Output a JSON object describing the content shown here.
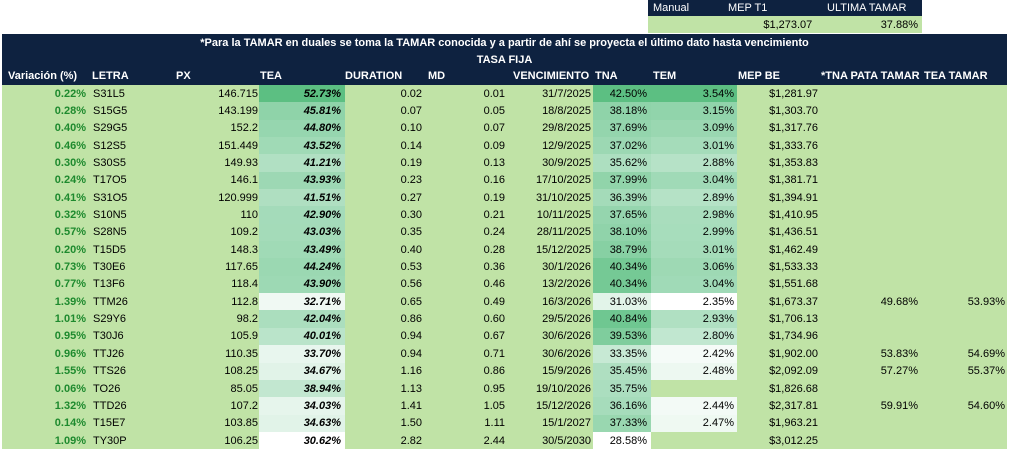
{
  "header": {
    "labels": [
      "Manual",
      "MEP T1",
      "ULTIMA TAMAR"
    ],
    "mep_t1": "$1,273.07",
    "ultima_tamar": "37.88%"
  },
  "note": "*Para la TAMAR en duales se toma la TAMAR conocida y a partir de ahí se proyecta el último dato hasta vencimiento",
  "section_title": "TASA FIJA",
  "columns": [
    "Variación (%)",
    "LETRA",
    "PX",
    "TEA",
    "DURATION",
    "MD",
    "VENCIMIENTO",
    "TNA",
    "TEM",
    "MEP BE",
    "*TNA PATA TAMAR",
    "TEA TAMAR"
  ],
  "colors": {
    "navy": "#0e2240",
    "row_bg": "#c0e3a6",
    "var_text": "#1e8a2e",
    "heat_max": "#5cbf82",
    "heat_min": "#ffffff"
  },
  "rows": [
    {
      "var": "0.22%",
      "letra": "S31L5",
      "px": "146.715",
      "tea": "52.73%",
      "duration": "0.02",
      "md": "0.01",
      "venc": "31/7/2025",
      "tna": "42.50%",
      "tem": "3.54%",
      "mep": "$1,281.97",
      "tna_tamar": "",
      "tea_tamar": "",
      "tea_n": 52.73,
      "tna_n": 42.5,
      "tem_n": 3.54
    },
    {
      "var": "0.28%",
      "letra": "S15G5",
      "px": "143.199",
      "tea": "45.81%",
      "duration": "0.07",
      "md": "0.05",
      "venc": "18/8/2025",
      "tna": "38.18%",
      "tem": "3.15%",
      "mep": "$1,303.70",
      "tna_tamar": "",
      "tea_tamar": "",
      "tea_n": 45.81,
      "tna_n": 38.18,
      "tem_n": 3.15
    },
    {
      "var": "0.40%",
      "letra": "S29G5",
      "px": "152.2",
      "tea": "44.80%",
      "duration": "0.10",
      "md": "0.07",
      "venc": "29/8/2025",
      "tna": "37.69%",
      "tem": "3.09%",
      "mep": "$1,317.76",
      "tna_tamar": "",
      "tea_tamar": "",
      "tea_n": 44.8,
      "tna_n": 37.69,
      "tem_n": 3.09
    },
    {
      "var": "0.46%",
      "letra": "S12S5",
      "px": "151.449",
      "tea": "43.52%",
      "duration": "0.14",
      "md": "0.09",
      "venc": "12/9/2025",
      "tna": "37.02%",
      "tem": "3.01%",
      "mep": "$1,333.76",
      "tna_tamar": "",
      "tea_tamar": "",
      "tea_n": 43.52,
      "tna_n": 37.02,
      "tem_n": 3.01
    },
    {
      "var": "0.30%",
      "letra": "S30S5",
      "px": "149.93",
      "tea": "41.21%",
      "duration": "0.19",
      "md": "0.13",
      "venc": "30/9/2025",
      "tna": "35.62%",
      "tem": "2.88%",
      "mep": "$1,353.83",
      "tna_tamar": "",
      "tea_tamar": "",
      "tea_n": 41.21,
      "tna_n": 35.62,
      "tem_n": 2.88
    },
    {
      "var": "0.24%",
      "letra": "T17O5",
      "px": "146.1",
      "tea": "43.93%",
      "duration": "0.23",
      "md": "0.16",
      "venc": "17/10/2025",
      "tna": "37.99%",
      "tem": "3.04%",
      "mep": "$1,381.71",
      "tna_tamar": "",
      "tea_tamar": "",
      "tea_n": 43.93,
      "tna_n": 37.99,
      "tem_n": 3.04
    },
    {
      "var": "0.41%",
      "letra": "S31O5",
      "px": "120.999",
      "tea": "41.51%",
      "duration": "0.27",
      "md": "0.19",
      "venc": "31/10/2025",
      "tna": "36.39%",
      "tem": "2.89%",
      "mep": "$1,394.91",
      "tna_tamar": "",
      "tea_tamar": "",
      "tea_n": 41.51,
      "tna_n": 36.39,
      "tem_n": 2.89
    },
    {
      "var": "0.32%",
      "letra": "S10N5",
      "px": "110",
      "tea": "42.90%",
      "duration": "0.30",
      "md": "0.21",
      "venc": "10/11/2025",
      "tna": "37.65%",
      "tem": "2.98%",
      "mep": "$1,410.95",
      "tna_tamar": "",
      "tea_tamar": "",
      "tea_n": 42.9,
      "tna_n": 37.65,
      "tem_n": 2.98
    },
    {
      "var": "0.57%",
      "letra": "S28N5",
      "px": "109.2",
      "tea": "43.03%",
      "duration": "0.35",
      "md": "0.24",
      "venc": "28/11/2025",
      "tna": "38.10%",
      "tem": "2.99%",
      "mep": "$1,436.51",
      "tna_tamar": "",
      "tea_tamar": "",
      "tea_n": 43.03,
      "tna_n": 38.1,
      "tem_n": 2.99
    },
    {
      "var": "0.20%",
      "letra": "T15D5",
      "px": "148.3",
      "tea": "43.49%",
      "duration": "0.40",
      "md": "0.28",
      "venc": "15/12/2025",
      "tna": "38.79%",
      "tem": "3.01%",
      "mep": "$1,462.49",
      "tna_tamar": "",
      "tea_tamar": "",
      "tea_n": 43.49,
      "tna_n": 38.79,
      "tem_n": 3.01
    },
    {
      "var": "0.73%",
      "letra": "T30E6",
      "px": "117.65",
      "tea": "44.24%",
      "duration": "0.53",
      "md": "0.36",
      "venc": "30/1/2026",
      "tna": "40.34%",
      "tem": "3.06%",
      "mep": "$1,533.33",
      "tna_tamar": "",
      "tea_tamar": "",
      "tea_n": 44.24,
      "tna_n": 40.34,
      "tem_n": 3.06
    },
    {
      "var": "0.77%",
      "letra": "T13F6",
      "px": "118.4",
      "tea": "43.90%",
      "duration": "0.56",
      "md": "0.46",
      "venc": "13/2/2026",
      "tna": "40.34%",
      "tem": "3.04%",
      "mep": "$1,551.68",
      "tna_tamar": "",
      "tea_tamar": "",
      "tea_n": 43.9,
      "tna_n": 40.34,
      "tem_n": 3.04
    },
    {
      "var": "1.39%",
      "letra": "TTM26",
      "px": "112.8",
      "tea": "32.71%",
      "duration": "0.65",
      "md": "0.49",
      "venc": "16/3/2026",
      "tna": "31.03%",
      "tem": "2.35%",
      "mep": "$1,673.37",
      "tna_tamar": "49.68%",
      "tea_tamar": "53.93%",
      "tea_n": 32.71,
      "tna_n": 31.03,
      "tem_n": 2.35
    },
    {
      "var": "1.01%",
      "letra": "S29Y6",
      "px": "98.2",
      "tea": "42.04%",
      "duration": "0.86",
      "md": "0.60",
      "venc": "29/5/2026",
      "tna": "40.84%",
      "tem": "2.93%",
      "mep": "$1,706.13",
      "tna_tamar": "",
      "tea_tamar": "",
      "tea_n": 42.04,
      "tna_n": 40.84,
      "tem_n": 2.93
    },
    {
      "var": "0.95%",
      "letra": "T30J6",
      "px": "105.9",
      "tea": "40.01%",
      "duration": "0.94",
      "md": "0.67",
      "venc": "30/6/2026",
      "tna": "39.53%",
      "tem": "2.80%",
      "mep": "$1,734.96",
      "tna_tamar": "",
      "tea_tamar": "",
      "tea_n": 40.01,
      "tna_n": 39.53,
      "tem_n": 2.8
    },
    {
      "var": "0.96%",
      "letra": "TTJ26",
      "px": "110.35",
      "tea": "33.70%",
      "duration": "0.94",
      "md": "0.71",
      "venc": "30/6/2026",
      "tna": "33.35%",
      "tem": "2.42%",
      "mep": "$1,902.00",
      "tna_tamar": "53.83%",
      "tea_tamar": "54.69%",
      "tea_n": 33.7,
      "tna_n": 33.35,
      "tem_n": 2.42
    },
    {
      "var": "1.55%",
      "letra": "TTS26",
      "px": "108.25",
      "tea": "34.67%",
      "duration": "1.16",
      "md": "0.86",
      "venc": "15/9/2026",
      "tna": "35.45%",
      "tem": "2.48%",
      "mep": "$2,092.09",
      "tna_tamar": "57.27%",
      "tea_tamar": "55.37%",
      "tea_n": 34.67,
      "tna_n": 35.45,
      "tem_n": 2.48
    },
    {
      "var": "0.06%",
      "letra": "TO26",
      "px": "85.05",
      "tea": "38.94%",
      "duration": "1.13",
      "md": "0.95",
      "venc": "19/10/2026",
      "tna": "35.75%",
      "tem": "",
      "mep": "$1,826.68",
      "tna_tamar": "",
      "tea_tamar": "",
      "tea_n": 38.94,
      "tna_n": 35.75,
      "tem_n": null
    },
    {
      "var": "1.32%",
      "letra": "TTD26",
      "px": "107.2",
      "tea": "34.03%",
      "duration": "1.41",
      "md": "1.05",
      "venc": "15/12/2026",
      "tna": "36.16%",
      "tem": "2.44%",
      "mep": "$2,317.81",
      "tna_tamar": "59.91%",
      "tea_tamar": "54.60%",
      "tea_n": 34.03,
      "tna_n": 36.16,
      "tem_n": 2.44
    },
    {
      "var": "0.14%",
      "letra": "T15E7",
      "px": "103.85",
      "tea": "34.63%",
      "duration": "1.50",
      "md": "1.11",
      "venc": "15/1/2027",
      "tna": "37.33%",
      "tem": "2.47%",
      "mep": "$1,963.21",
      "tna_tamar": "",
      "tea_tamar": "",
      "tea_n": 34.63,
      "tna_n": 37.33,
      "tem_n": 2.47
    },
    {
      "var": "1.09%",
      "letra": "TY30P",
      "px": "106.25",
      "tea": "30.62%",
      "duration": "2.82",
      "md": "2.44",
      "venc": "30/5/2030",
      "tna": "28.58%",
      "tem": "",
      "mep": "$3,012.25",
      "tna_tamar": "",
      "tea_tamar": "",
      "tea_n": 30.62,
      "tna_n": 28.58,
      "tem_n": null
    }
  ]
}
